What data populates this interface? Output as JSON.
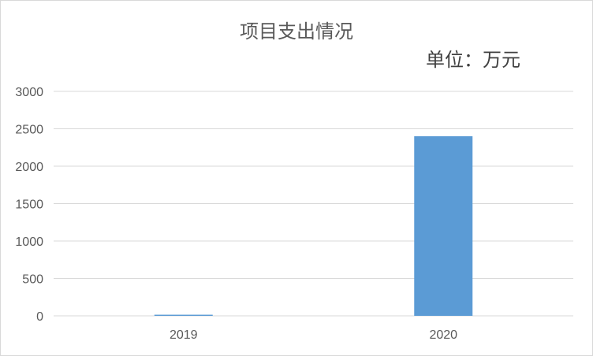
{
  "chart_data": {
    "type": "bar",
    "title": "项目支出情况",
    "subtitle": "单位：万元",
    "categories": [
      "2019",
      "2020"
    ],
    "series": [
      {
        "values": [
          15,
          2400
        ],
        "color": "#5b9bd5"
      }
    ],
    "ylim": [
      0,
      3000
    ],
    "yticks": [
      0,
      500,
      1000,
      1500,
      2000,
      2500,
      3000
    ],
    "grid": true,
    "legend": "none"
  }
}
